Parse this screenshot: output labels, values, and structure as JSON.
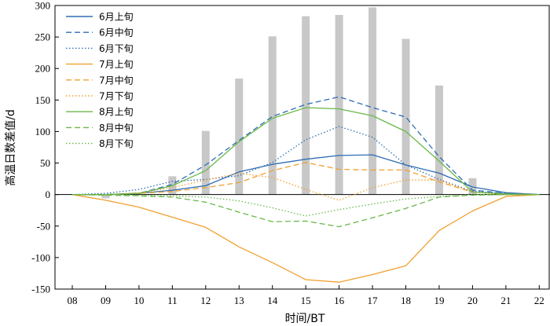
{
  "chart_data": {
    "type": "bar+line",
    "xlabel": "时间/BT",
    "ylabel": "高温日数差值/d",
    "ylim": [
      -150,
      300
    ],
    "yticks": [
      -150,
      -100,
      -50,
      0,
      50,
      100,
      150,
      200,
      250,
      300
    ],
    "categories": [
      "08",
      "09",
      "10",
      "11",
      "12",
      "13",
      "14",
      "15",
      "16",
      "17",
      "18",
      "19",
      "20",
      "21",
      "22"
    ],
    "bars": {
      "color": "#c8c8c8",
      "values": [
        0,
        -6,
        0,
        29,
        101,
        184,
        251,
        283,
        285,
        297,
        247,
        173,
        26,
        0,
        0
      ]
    },
    "legend_position": "top-left",
    "series": [
      {
        "name": "6月上旬",
        "color": "#2e6db4",
        "dash": "solid",
        "values": [
          0,
          0,
          2,
          7,
          14,
          36,
          48,
          56,
          62,
          63,
          47,
          34,
          12,
          3,
          0
        ]
      },
      {
        "name": "6月中旬",
        "color": "#2e6db4",
        "dash": "dashed",
        "values": [
          0,
          0,
          2,
          16,
          47,
          86,
          124,
          143,
          155,
          138,
          123,
          60,
          7,
          2,
          0
        ]
      },
      {
        "name": "6月下旬",
        "color": "#2e6db4",
        "dash": "dotted",
        "values": [
          0,
          2,
          8,
          21,
          24,
          30,
          51,
          87,
          108,
          91,
          47,
          24,
          5,
          2,
          0
        ]
      },
      {
        "name": "7月上旬",
        "color": "#f0a030",
        "dash": "solid",
        "values": [
          0,
          -9,
          -20,
          -36,
          -52,
          -83,
          -108,
          -135,
          -139,
          -127,
          -113,
          -57,
          -26,
          -3,
          0
        ]
      },
      {
        "name": "7月中旬",
        "color": "#f0a030",
        "dash": "dashed",
        "values": [
          0,
          0,
          2,
          5,
          11,
          19,
          38,
          51,
          40,
          39,
          39,
          20,
          4,
          1,
          0
        ]
      },
      {
        "name": "7月下旬",
        "color": "#f0a030",
        "dash": "dotted",
        "values": [
          0,
          0,
          3,
          11,
          23,
          34,
          27,
          8,
          -9,
          11,
          23,
          23,
          4,
          0,
          0
        ]
      },
      {
        "name": "8月上旬",
        "color": "#6ab84a",
        "dash": "solid",
        "values": [
          0,
          0,
          2,
          14,
          38,
          84,
          121,
          138,
          136,
          125,
          100,
          53,
          4,
          1,
          0
        ]
      },
      {
        "name": "8月中旬",
        "color": "#6ab84a",
        "dash": "dashed",
        "values": [
          0,
          -1,
          -2,
          -4,
          -12,
          -28,
          -43,
          -42,
          -51,
          -37,
          -22,
          -4,
          -1,
          0,
          0
        ]
      },
      {
        "name": "8月下旬",
        "color": "#6ab84a",
        "dash": "dotted",
        "values": [
          0,
          0,
          -1,
          -2,
          -4,
          -10,
          -21,
          -34,
          -24,
          -15,
          -7,
          -3,
          0,
          0,
          0
        ]
      }
    ]
  }
}
